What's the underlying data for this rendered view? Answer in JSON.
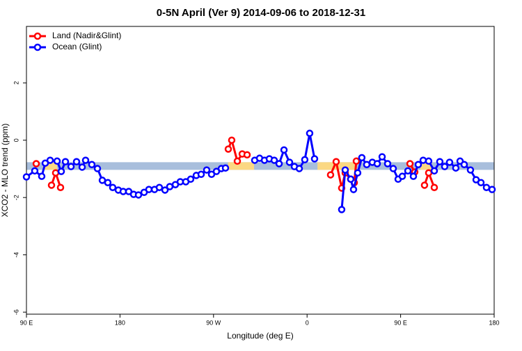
{
  "chart_data": {
    "type": "line",
    "title": "0-5N April (Ver 9)   2014-09-06 to 2018-12-31",
    "x_label": "Longitude (deg E)",
    "y_label": "XCO2 - MLO trend (ppm)",
    "xlim": [
      90,
      540
    ],
    "ylim": [
      -6.07,
      3.97
    ],
    "xticks": [
      {
        "value": 90,
        "label": "90 E"
      },
      180,
      {
        "value": 270,
        "label": "90 W"
      },
      {
        "value": 360,
        "label": "0"
      },
      {
        "value": 450,
        "label": "90 E"
      },
      {
        "value": 540,
        "label": "180"
      }
    ],
    "yticks": [
      -6,
      -4,
      -2,
      0,
      2
    ],
    "legend": "top-left",
    "band": {
      "value": -0.9,
      "color": "#a8bedc",
      "highlight_color": "#fbd883",
      "highlight_ranges": [
        [
          106,
          119.5
        ],
        [
          284,
          309
        ],
        [
          370,
          406
        ],
        [
          469,
          480
        ]
      ]
    },
    "series": [
      {
        "name": "Land (Nadir&Glint)",
        "color": "#ff0000",
        "x": [
          99.4,
          null,
          114.1,
          118.1,
          122.8,
          null,
          284.2,
          287.5,
          292.9,
          297.6,
          302.3,
          null,
          382.6,
          388.0,
          393.3,
          396.7,
          402.0,
          405.4,
          407.4,
          null,
          459.0,
          463.6,
          null,
          473.0,
          477.0,
          482.4
        ],
        "values": [
          -0.82,
          null,
          -1.57,
          -1.14,
          -1.65,
          null,
          -0.31,
          0.0,
          -0.73,
          -0.48,
          -0.51,
          null,
          -1.21,
          -0.75,
          -1.67,
          -1.14,
          -1.36,
          -1.48,
          -0.73,
          null,
          -0.82,
          -1.11,
          null,
          -1.57,
          -1.14,
          -1.65
        ]
      },
      {
        "name": "Ocean (Glint)",
        "color": "#0000ff",
        "x": [
          90,
          98.0,
          104.7,
          108.1,
          112.8,
          119.5,
          123.5,
          127.5,
          132.9,
          138.2,
          143.6,
          146.9,
          152.9,
          158.3,
          163.0,
          168.3,
          173.0,
          178.4,
          183.1,
          188.4,
          193.1,
          197.8,
          203.2,
          207.8,
          213.2,
          217.9,
          223.3,
          227.9,
          233.3,
          238.0,
          243.3,
          248.0,
          253.4,
          258.1,
          263.4,
          268.1,
          272.8,
          277.5,
          281.5,
          null,
          309.6,
          314.3,
          319.0,
          323.7,
          328.4,
          333.1,
          337.8,
          343.1,
          347.8,
          352.5,
          357.8,
          362.5,
          367.2,
          null,
          393.3,
          396.7,
          402.0,
          404.7,
          408.7,
          412.7,
          417.4,
          422.8,
          427.5,
          432.2,
          437.5,
          442.9,
          447.6,
          451.6,
          457.0,
          462.3,
          467.0,
          471.7,
          477.0,
          482.4,
          487.7,
          492.4,
          497.1,
          503.1,
          507.2,
          511.2,
          517.2,
          522.6,
          527.3,
          532.6,
          538.0
        ],
        "values": [
          -1.28,
          -1.07,
          -1.26,
          -0.8,
          -0.7,
          -0.73,
          -1.09,
          -0.75,
          -0.92,
          -0.75,
          -0.94,
          -0.7,
          -0.85,
          -0.99,
          -1.4,
          -1.48,
          -1.65,
          -1.74,
          -1.79,
          -1.79,
          -1.89,
          -1.91,
          -1.82,
          -1.72,
          -1.72,
          -1.65,
          -1.74,
          -1.62,
          -1.55,
          -1.45,
          -1.45,
          -1.36,
          -1.23,
          -1.19,
          -1.04,
          -1.19,
          -1.09,
          -0.99,
          -0.97,
          null,
          -0.7,
          -0.63,
          -0.7,
          -0.65,
          -0.7,
          -0.82,
          -0.34,
          -0.77,
          -0.92,
          -0.99,
          -0.68,
          0.24,
          -0.65,
          null,
          -2.42,
          -1.04,
          -1.36,
          -1.72,
          -1.14,
          -0.61,
          -0.85,
          -0.77,
          -0.82,
          -0.58,
          -0.82,
          -0.99,
          -1.36,
          -1.26,
          -1.07,
          -1.26,
          -0.85,
          -0.7,
          -0.73,
          -1.07,
          -0.75,
          -0.92,
          -0.77,
          -0.97,
          -0.73,
          -0.85,
          -1.04,
          -1.38,
          -1.48,
          -1.65,
          -1.72
        ]
      }
    ]
  }
}
